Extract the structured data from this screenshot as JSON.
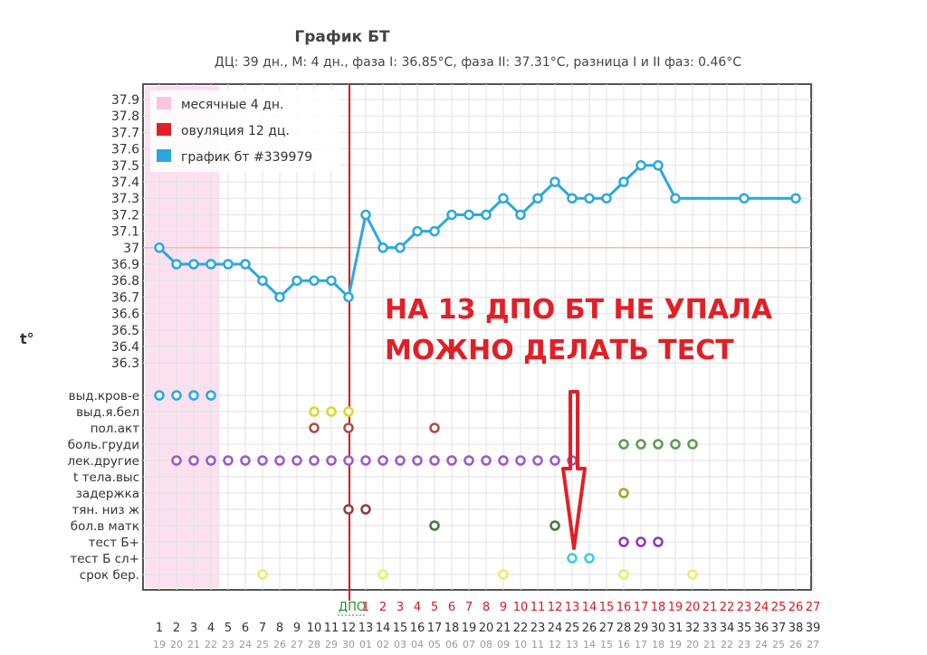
{
  "chart_data": {
    "type": "line",
    "title": "График БТ",
    "subtitle": "ДЦ: 39  дн., М: 4 дн., фаза I: 36.85°C, фаза II: 37.31°C, разница I и II фаз: 0.46°C",
    "ylabel": "t°",
    "ylim": [
      36.3,
      37.9
    ],
    "yticks": [
      "37.9",
      "37.8",
      "37.7",
      "37.6",
      "37.5",
      "37.4",
      "37.3",
      "37.2",
      "37.1",
      "37",
      "36.9",
      "36.8",
      "36.7",
      "36.6",
      "36.5",
      "36.4",
      "36.3"
    ],
    "reference_line": 37.0,
    "legend": [
      {
        "label": "месячные 4 дн.",
        "color": "#f7c6e0"
      },
      {
        "label": "овуляция 12 дц.",
        "color": "#e21f26"
      },
      {
        "label": "график бт #339979",
        "color": "#29a8e0"
      }
    ],
    "menstruation_days": [
      1,
      4
    ],
    "ovulation_day": 12,
    "x_cycle_days": [
      1,
      2,
      3,
      4,
      5,
      6,
      7,
      8,
      9,
      10,
      11,
      12,
      13,
      14,
      15,
      16,
      17,
      18,
      19,
      20,
      21,
      22,
      23,
      24,
      25,
      26,
      27,
      28,
      29,
      30,
      31,
      32,
      33,
      34,
      35,
      36,
      37,
      38,
      39
    ],
    "x_dates": [
      "19",
      "20",
      "21",
      "22",
      "23",
      "24",
      "25",
      "26",
      "27",
      "28",
      "29",
      "30",
      "01",
      "02",
      "03",
      "04",
      "05",
      "06",
      "07",
      "08",
      "09",
      "10",
      "11",
      "12",
      "13",
      "14",
      "15",
      "16",
      "17",
      "18",
      "19",
      "20",
      "21",
      "22",
      "23",
      "24",
      "25",
      "26",
      "27"
    ],
    "dpo_label": "ДПО",
    "dpo_days": [
      "1",
      "2",
      "3",
      "4",
      "5",
      "6",
      "7",
      "8",
      "9",
      "10",
      "11",
      "12",
      "13",
      "14",
      "15",
      "16",
      "17",
      "18",
      "19",
      "20",
      "21",
      "22",
      "23",
      "24",
      "25",
      "26",
      "27"
    ],
    "series": [
      {
        "name": "график бт #339979",
        "color": "#29a8e0",
        "points": [
          [
            1,
            37.0
          ],
          [
            2,
            36.9
          ],
          [
            3,
            36.9
          ],
          [
            4,
            36.9
          ],
          [
            5,
            36.9
          ],
          [
            6,
            36.9
          ],
          [
            7,
            36.8
          ],
          [
            8,
            36.7
          ],
          [
            9,
            36.8
          ],
          [
            10,
            36.8
          ],
          [
            11,
            36.8
          ],
          [
            12,
            36.7
          ],
          [
            13,
            37.2
          ],
          [
            14,
            37.0
          ],
          [
            15,
            37.0
          ],
          [
            16,
            37.1
          ],
          [
            17,
            37.1
          ],
          [
            18,
            37.2
          ],
          [
            19,
            37.2
          ],
          [
            20,
            37.2
          ],
          [
            21,
            37.3
          ],
          [
            22,
            37.2
          ],
          [
            23,
            37.3
          ],
          [
            24,
            37.4
          ],
          [
            25,
            37.3
          ],
          [
            26,
            37.3
          ],
          [
            27,
            37.3
          ],
          [
            28,
            37.4
          ],
          [
            29,
            37.5
          ],
          [
            30,
            37.5
          ],
          [
            31,
            37.3
          ],
          [
            35,
            37.3
          ],
          [
            38,
            37.3
          ]
        ]
      }
    ],
    "symptom_rows": [
      {
        "label": "выд.кров-е",
        "color": "#29a8e0",
        "days": [
          1,
          2,
          3,
          4
        ]
      },
      {
        "label": "выд.я.бел",
        "color": "#d7d92a",
        "days": [
          10,
          11,
          12
        ]
      },
      {
        "label": "пол.акт",
        "color": "#b04a4a",
        "days": [
          10,
          12,
          17
        ]
      },
      {
        "label": "боль.груди",
        "color": "#5b9c52",
        "days": [
          28,
          29,
          30,
          31,
          32
        ]
      },
      {
        "label": "лек.другие",
        "color": "#9b59c8",
        "days": [
          2,
          3,
          4,
          5,
          6,
          7,
          8,
          9,
          10,
          11,
          12,
          13,
          14,
          15,
          16,
          17,
          18,
          19,
          20,
          21,
          22,
          23,
          24,
          25
        ]
      },
      {
        "label": "t тела.выс",
        "color": "#999999",
        "days": []
      },
      {
        "label": "задержка",
        "color": "#a5a52a",
        "days": [
          28
        ]
      },
      {
        "label": "тян. низ ж",
        "color": "#9a3a3a",
        "days": [
          12,
          13
        ]
      },
      {
        "label": "бол.в матк",
        "color": "#3f7a3f",
        "days": [
          17,
          24
        ]
      },
      {
        "label": "тест Б+",
        "color": "#8a3ab4",
        "days": [
          28,
          29,
          30
        ]
      },
      {
        "label": "тест Б сл+",
        "color": "#36cfe0",
        "days": [
          25,
          26
        ]
      },
      {
        "label": "срок бер.",
        "color": "#e6ef6a",
        "days": [
          7,
          14,
          21,
          28,
          32
        ]
      }
    ],
    "annotation": [
      "НА 13 ДПО БТ НЕ УПАЛА",
      "МОЖНО ДЕЛАТЬ ТЕСТ"
    ]
  }
}
